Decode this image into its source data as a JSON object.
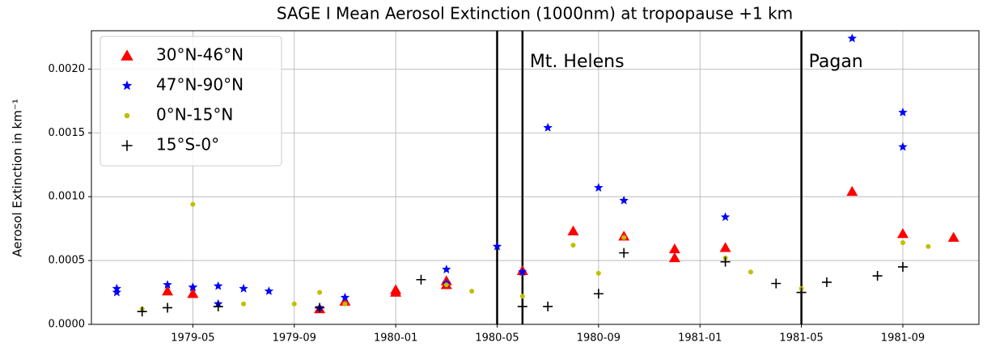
{
  "chart_data": {
    "type": "scatter",
    "title": "SAGE I Mean Aerosol Extinction (1000nm) at tropopause +1 km",
    "y_label": "Aerosol Extinction in km⁻¹",
    "xlim": [
      "1979-01",
      "1981-12"
    ],
    "xticks": [
      "1979-05",
      "1979-09",
      "1980-01",
      "1980-05",
      "1980-09",
      "1981-01",
      "1981-05",
      "1981-09"
    ],
    "ylim": [
      0,
      0.0023
    ],
    "yticks": [
      {
        "value": 0,
        "label": "0.0000"
      },
      {
        "value": 0.0005,
        "label": "0.0005"
      },
      {
        "value": 0.001,
        "label": "0.0010"
      },
      {
        "value": 0.0015,
        "label": "0.0015"
      },
      {
        "value": 0.002,
        "label": "0.0020"
      }
    ],
    "grid": true,
    "legend": "upper left",
    "vlines": [
      "1980-05",
      "1980-06",
      "1981-05"
    ],
    "annotations": [
      {
        "x": "1980-06",
        "text": "Mt. Helens"
      },
      {
        "x": "1981-05",
        "text": "Pagan"
      }
    ],
    "series": [
      {
        "name": "30°N-46°N",
        "color": "#ff0000",
        "marker": "triangle",
        "x": [
          "1979-04",
          "1979-05",
          "1979-10",
          "1979-11",
          "1980-01",
          "1980-01",
          "1980-03",
          "1980-03",
          "1980-06",
          "1980-08",
          "1980-10",
          "1980-12",
          "1980-12",
          "1981-02",
          "1981-07",
          "1981-09",
          "1981-11"
        ],
        "values": [
          0.00026,
          0.00024,
          0.00012,
          0.00018,
          0.00027,
          0.00025,
          0.00031,
          0.00034,
          0.00042,
          0.00073,
          0.00069,
          0.00059,
          0.00052,
          0.0006,
          0.00104,
          0.00071,
          0.00068
        ]
      },
      {
        "name": "47°N-90°N",
        "color": "#0000ff",
        "marker": "star",
        "x": [
          "1979-02",
          "1979-02",
          "1979-04",
          "1979-05",
          "1979-05",
          "1979-06",
          "1979-06",
          "1979-07",
          "1979-08",
          "1979-10",
          "1979-11",
          "1980-03",
          "1980-03",
          "1980-05",
          "1980-06",
          "1980-07",
          "1980-09",
          "1980-10",
          "1981-02",
          "1981-07",
          "1981-09",
          "1981-09"
        ],
        "values": [
          0.00028,
          0.00025,
          0.00031,
          0.00029,
          0.00029,
          0.0003,
          0.00016,
          0.00028,
          0.00026,
          0.00013,
          0.00021,
          0.00032,
          0.00043,
          0.00061,
          0.00041,
          0.00154,
          0.00107,
          0.00097,
          0.00084,
          0.00224,
          0.00166,
          0.00139
        ]
      },
      {
        "name": "0°N-15°N",
        "color": "#bfbf00",
        "marker": "dot",
        "x": [
          "1979-03",
          "1979-05",
          "1979-07",
          "1979-09",
          "1979-10",
          "1979-11",
          "1980-03",
          "1980-04",
          "1980-06",
          "1980-08",
          "1980-09",
          "1980-10",
          "1981-02",
          "1981-03",
          "1981-05",
          "1981-09",
          "1981-10"
        ],
        "values": [
          0.00012,
          0.00094,
          0.00016,
          0.00016,
          0.00025,
          0.00016,
          0.00031,
          0.00026,
          0.00022,
          0.00062,
          0.0004,
          0.00068,
          0.00052,
          0.00041,
          0.00028,
          0.00064,
          0.00061
        ]
      },
      {
        "name": "15°S-0°",
        "color": "#000000",
        "marker": "plus",
        "x": [
          "1979-03",
          "1979-04",
          "1979-06",
          "1979-10",
          "1980-02",
          "1980-06",
          "1980-07",
          "1980-09",
          "1980-10",
          "1981-02",
          "1981-04",
          "1981-05",
          "1981-06",
          "1981-08",
          "1981-09"
        ],
        "values": [
          0.0001,
          0.00013,
          0.00014,
          0.00013,
          0.00035,
          0.00014,
          0.00014,
          0.00024,
          0.00056,
          0.00049,
          0.00032,
          0.00025,
          0.00033,
          0.00038,
          0.00045
        ]
      }
    ]
  }
}
